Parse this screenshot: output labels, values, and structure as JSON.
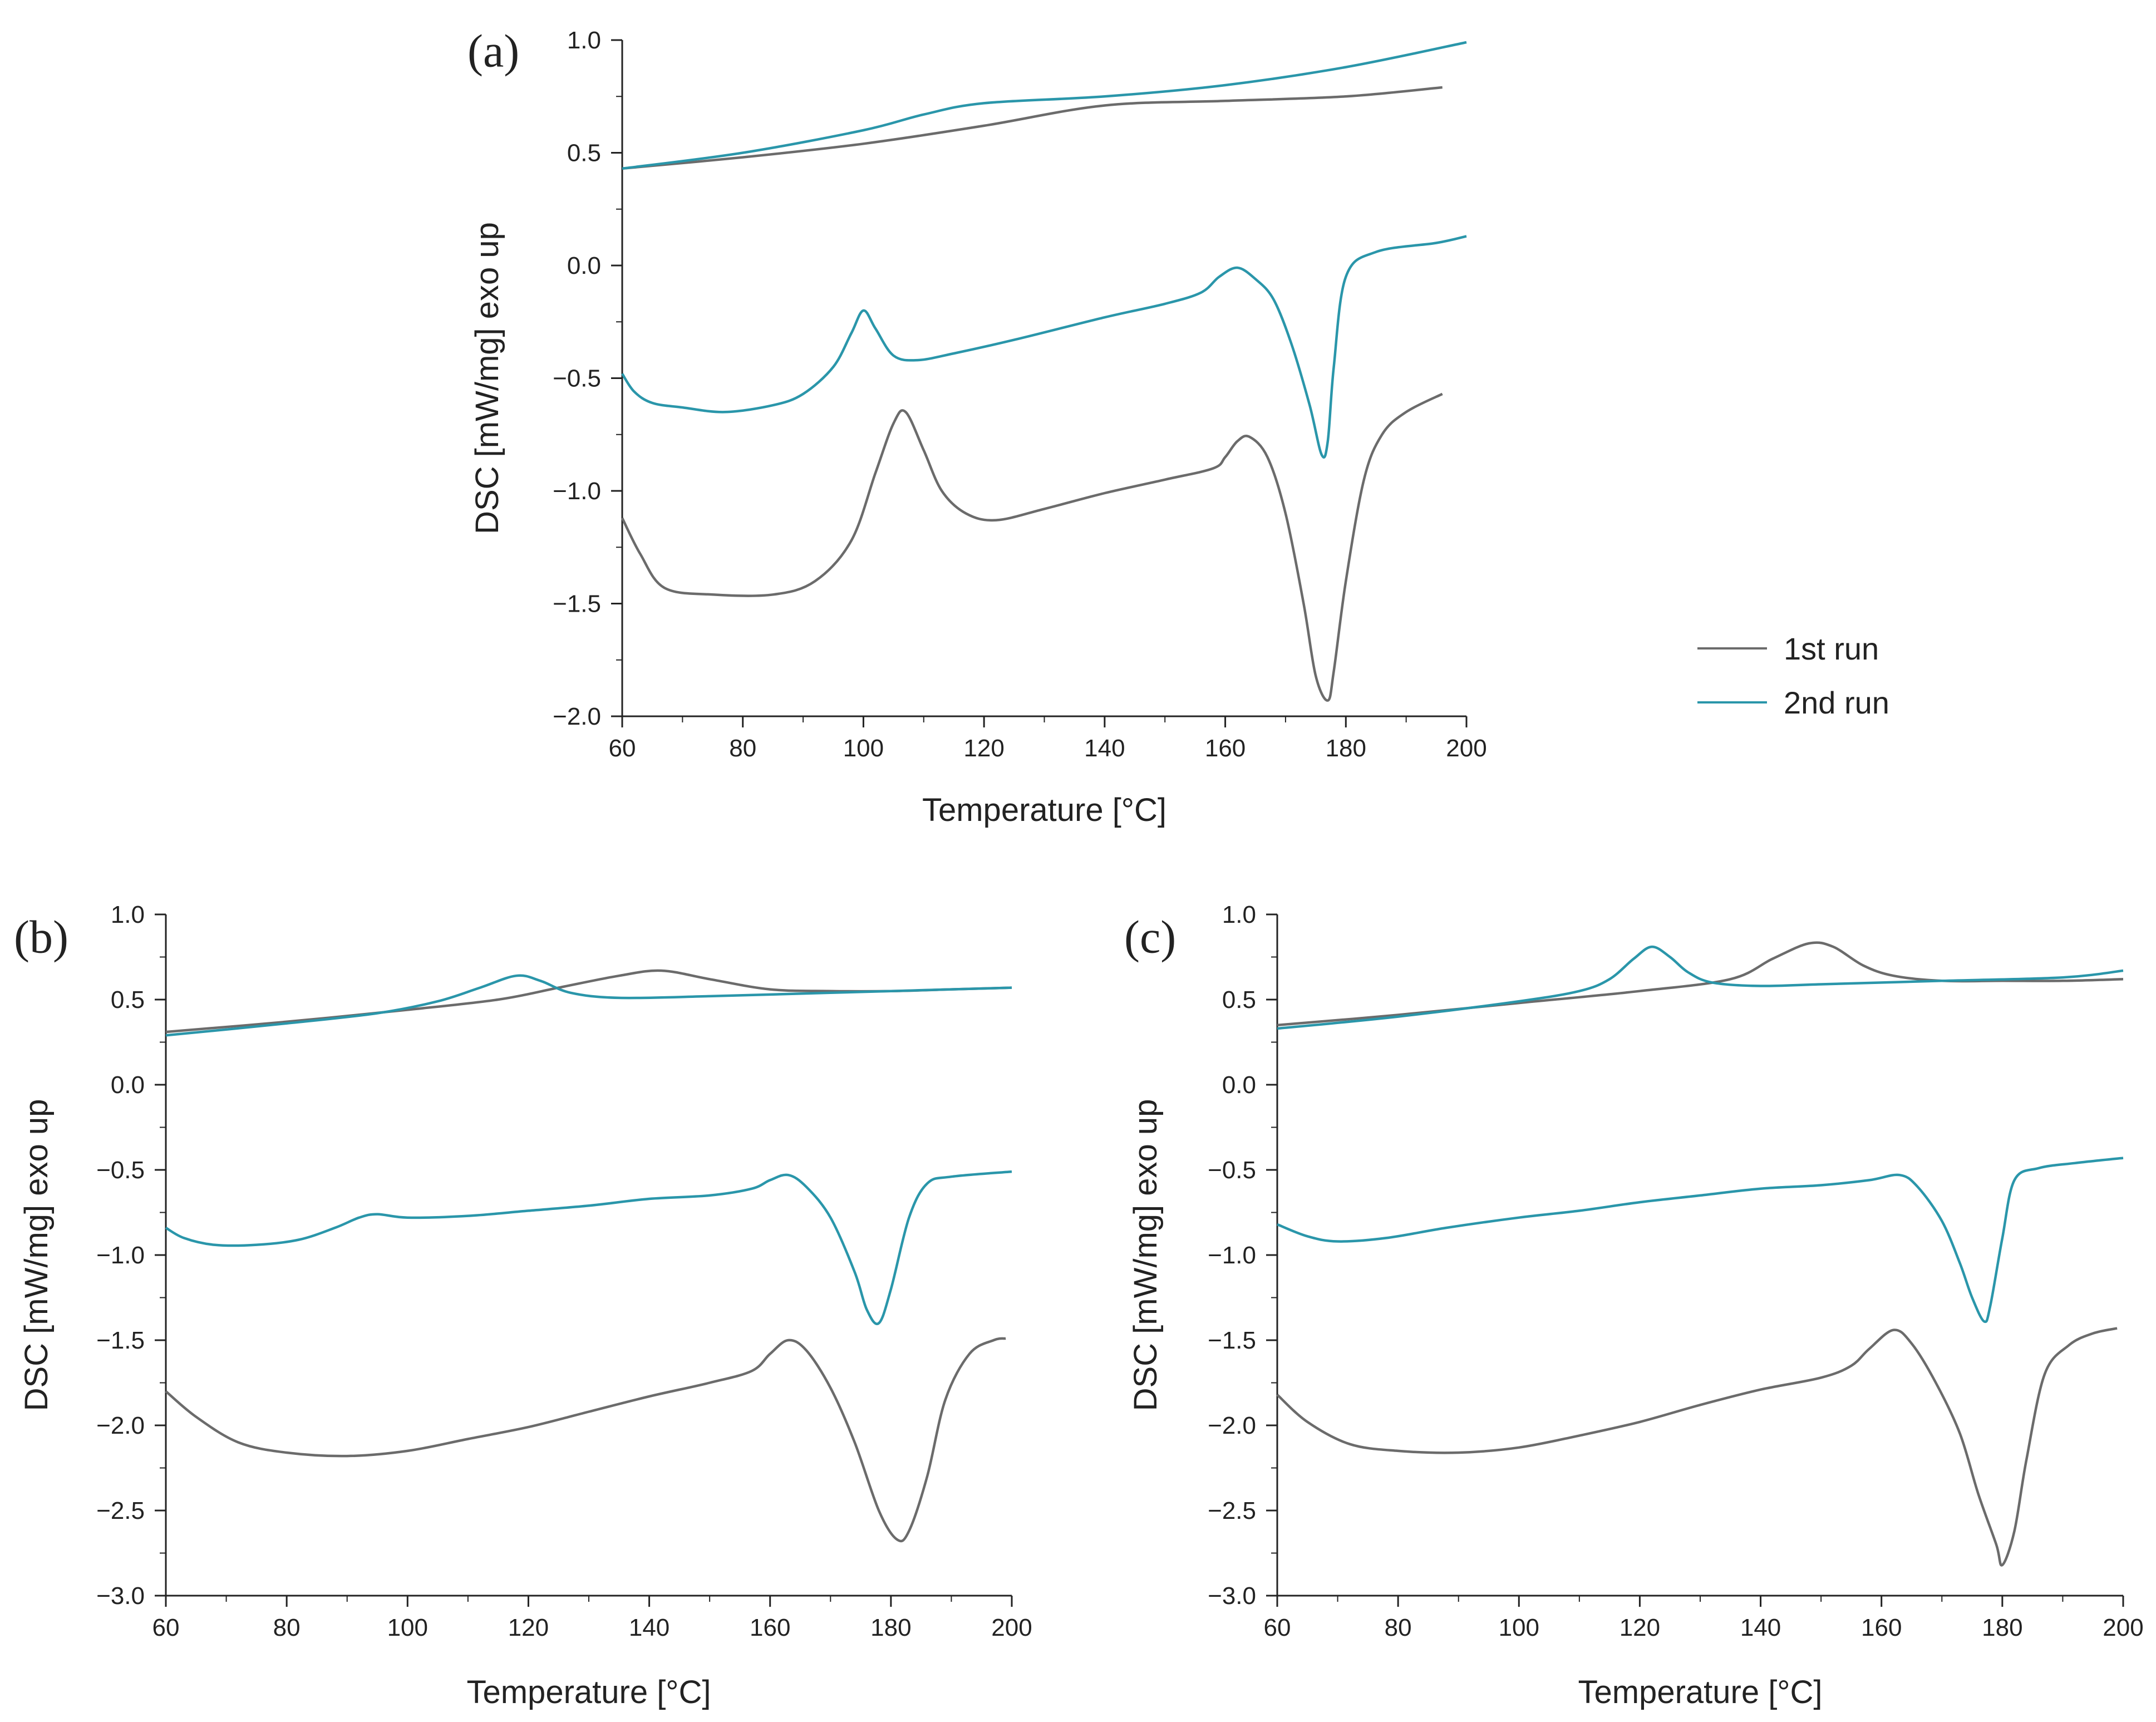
{
  "figure": {
    "x_label": "Temperature [°C]",
    "y_label": "DSC [mW/mg]   exo up"
  },
  "legend": {
    "items": [
      {
        "label": "1st run",
        "color": "#6b6b6b"
      },
      {
        "label": "2nd run",
        "color": "#2a96aa"
      }
    ]
  },
  "chart_data": [
    {
      "panel": "(a)",
      "type": "line",
      "xlabel": "Temperature [°C]",
      "ylabel": "DSC [mW/mg]   exo up",
      "xlim": [
        60,
        200
      ],
      "ylim": [
        -2.0,
        1.0
      ],
      "xticks": [
        60,
        80,
        100,
        120,
        140,
        160,
        180,
        200
      ],
      "yticks": [
        -2.0,
        -1.5,
        -1.0,
        -0.5,
        0.0,
        0.5,
        1.0
      ],
      "series": [
        {
          "name": "1st run",
          "color": "#6b6b6b",
          "points": [
            [
              60,
              0.43
            ],
            [
              80,
              0.48
            ],
            [
              100,
              0.54
            ],
            [
              120,
              0.62
            ],
            [
              140,
              0.71
            ],
            [
              160,
              0.73
            ],
            [
              180,
              0.75
            ],
            [
              196,
              0.79
            ]
          ]
        },
        {
          "name": "2nd run",
          "color": "#2a96aa",
          "points": [
            [
              60,
              0.43
            ],
            [
              80,
              0.5
            ],
            [
              100,
              0.6
            ],
            [
              110,
              0.67
            ],
            [
              120,
              0.72
            ],
            [
              140,
              0.75
            ],
            [
              160,
              0.8
            ],
            [
              180,
              0.88
            ],
            [
              200,
              0.99
            ]
          ]
        },
        {
          "name": "1st run",
          "color": "#6b6b6b",
          "points": [
            [
              60,
              -1.12
            ],
            [
              63,
              -1.28
            ],
            [
              67,
              -1.43
            ],
            [
              75,
              -1.46
            ],
            [
              85,
              -1.46
            ],
            [
              92,
              -1.4
            ],
            [
              98,
              -1.22
            ],
            [
              102,
              -0.92
            ],
            [
              105,
              -0.7
            ],
            [
              107,
              -0.65
            ],
            [
              110,
              -0.82
            ],
            [
              113,
              -1.0
            ],
            [
              117,
              -1.1
            ],
            [
              122,
              -1.13
            ],
            [
              130,
              -1.08
            ],
            [
              140,
              -1.01
            ],
            [
              150,
              -0.95
            ],
            [
              158,
              -0.9
            ],
            [
              160,
              -0.85
            ],
            [
              162,
              -0.78
            ],
            [
              164,
              -0.76
            ],
            [
              167,
              -0.85
            ],
            [
              170,
              -1.1
            ],
            [
              173,
              -1.5
            ],
            [
              175,
              -1.82
            ],
            [
              177,
              -1.93
            ],
            [
              178,
              -1.8
            ],
            [
              180,
              -1.4
            ],
            [
              183,
              -0.95
            ],
            [
              186,
              -0.75
            ],
            [
              190,
              -0.65
            ],
            [
              196,
              -0.57
            ]
          ]
        },
        {
          "name": "2nd run",
          "color": "#2a96aa",
          "points": [
            [
              60,
              -0.48
            ],
            [
              62,
              -0.56
            ],
            [
              65,
              -0.61
            ],
            [
              70,
              -0.63
            ],
            [
              77,
              -0.65
            ],
            [
              85,
              -0.62
            ],
            [
              90,
              -0.57
            ],
            [
              95,
              -0.45
            ],
            [
              98,
              -0.3
            ],
            [
              100,
              -0.2
            ],
            [
              102,
              -0.28
            ],
            [
              105,
              -0.4
            ],
            [
              109,
              -0.42
            ],
            [
              115,
              -0.39
            ],
            [
              125,
              -0.33
            ],
            [
              140,
              -0.23
            ],
            [
              150,
              -0.17
            ],
            [
              156,
              -0.12
            ],
            [
              159,
              -0.05
            ],
            [
              162,
              -0.01
            ],
            [
              165,
              -0.06
            ],
            [
              168,
              -0.15
            ],
            [
              171,
              -0.35
            ],
            [
              174,
              -0.62
            ],
            [
              176,
              -0.84
            ],
            [
              177,
              -0.78
            ],
            [
              178,
              -0.45
            ],
            [
              180,
              -0.05
            ],
            [
              185,
              0.06
            ],
            [
              195,
              0.1
            ],
            [
              200,
              0.13
            ]
          ]
        }
      ]
    },
    {
      "panel": "(b)",
      "type": "line",
      "xlabel": "Temperature [°C]",
      "ylabel": "DSC [mW/mg]   exo up",
      "xlim": [
        60,
        200
      ],
      "ylim": [
        -3.0,
        1.0
      ],
      "xticks": [
        60,
        80,
        100,
        120,
        140,
        160,
        180,
        200
      ],
      "yticks": [
        -3.0,
        -2.5,
        -2.0,
        -1.5,
        -1.0,
        -0.5,
        0.0,
        0.5,
        1.0
      ],
      "series": [
        {
          "name": "1st run",
          "color": "#6b6b6b",
          "points": [
            [
              60,
              0.31
            ],
            [
              80,
              0.37
            ],
            [
              100,
              0.44
            ],
            [
              115,
              0.5
            ],
            [
              125,
              0.57
            ],
            [
              135,
              0.64
            ],
            [
              142,
              0.67
            ],
            [
              150,
              0.62
            ],
            [
              160,
              0.56
            ],
            [
              170,
              0.55
            ],
            [
              180,
              0.55
            ],
            [
              190,
              0.56
            ],
            [
              200,
              0.57
            ]
          ]
        },
        {
          "name": "2nd run",
          "color": "#2a96aa",
          "points": [
            [
              60,
              0.29
            ],
            [
              80,
              0.36
            ],
            [
              95,
              0.42
            ],
            [
              105,
              0.49
            ],
            [
              112,
              0.57
            ],
            [
              118,
              0.64
            ],
            [
              122,
              0.61
            ],
            [
              127,
              0.54
            ],
            [
              135,
              0.51
            ],
            [
              150,
              0.52
            ],
            [
              170,
              0.54
            ],
            [
              200,
              0.57
            ]
          ]
        },
        {
          "name": "1st run",
          "color": "#6b6b6b",
          "points": [
            [
              60,
              -1.8
            ],
            [
              65,
              -1.95
            ],
            [
              72,
              -2.1
            ],
            [
              80,
              -2.16
            ],
            [
              90,
              -2.18
            ],
            [
              100,
              -2.15
            ],
            [
              110,
              -2.08
            ],
            [
              120,
              -2.01
            ],
            [
              130,
              -1.92
            ],
            [
              140,
              -1.83
            ],
            [
              150,
              -1.75
            ],
            [
              157,
              -1.68
            ],
            [
              160,
              -1.58
            ],
            [
              163,
              -1.5
            ],
            [
              166,
              -1.56
            ],
            [
              170,
              -1.78
            ],
            [
              174,
              -2.1
            ],
            [
              178,
              -2.5
            ],
            [
              181,
              -2.67
            ],
            [
              183,
              -2.62
            ],
            [
              186,
              -2.3
            ],
            [
              189,
              -1.85
            ],
            [
              193,
              -1.58
            ],
            [
              197,
              -1.5
            ],
            [
              199,
              -1.49
            ]
          ]
        },
        {
          "name": "2nd run",
          "color": "#2a96aa",
          "points": [
            [
              60,
              -0.84
            ],
            [
              63,
              -0.9
            ],
            [
              68,
              -0.94
            ],
            [
              75,
              -0.94
            ],
            [
              82,
              -0.91
            ],
            [
              88,
              -0.84
            ],
            [
              92,
              -0.78
            ],
            [
              95,
              -0.76
            ],
            [
              100,
              -0.78
            ],
            [
              110,
              -0.77
            ],
            [
              120,
              -0.74
            ],
            [
              130,
              -0.71
            ],
            [
              140,
              -0.67
            ],
            [
              150,
              -0.65
            ],
            [
              157,
              -0.61
            ],
            [
              160,
              -0.56
            ],
            [
              163,
              -0.53
            ],
            [
              166,
              -0.6
            ],
            [
              170,
              -0.78
            ],
            [
              174,
              -1.1
            ],
            [
              176,
              -1.32
            ],
            [
              178,
              -1.4
            ],
            [
              180,
              -1.2
            ],
            [
              183,
              -0.78
            ],
            [
              186,
              -0.58
            ],
            [
              190,
              -0.54
            ],
            [
              200,
              -0.51
            ]
          ]
        }
      ]
    },
    {
      "panel": "(c)",
      "type": "line",
      "xlabel": "Temperature [°C]",
      "ylabel": "DSC [mW/mg]   exo up",
      "xlim": [
        60,
        200
      ],
      "ylim": [
        -3.0,
        1.0
      ],
      "xticks": [
        60,
        80,
        100,
        120,
        140,
        160,
        180,
        200
      ],
      "yticks": [
        -3.0,
        -2.5,
        -2.0,
        -1.5,
        -1.0,
        -0.5,
        0.0,
        0.5,
        1.0
      ],
      "series": [
        {
          "name": "1st run",
          "color": "#6b6b6b",
          "points": [
            [
              60,
              0.35
            ],
            [
              80,
              0.41
            ],
            [
              100,
              0.48
            ],
            [
              120,
              0.55
            ],
            [
              135,
              0.62
            ],
            [
              142,
              0.74
            ],
            [
              148,
              0.83
            ],
            [
              152,
              0.81
            ],
            [
              157,
              0.7
            ],
            [
              162,
              0.64
            ],
            [
              170,
              0.61
            ],
            [
              180,
              0.61
            ],
            [
              190,
              0.61
            ],
            [
              200,
              0.62
            ]
          ]
        },
        {
          "name": "2nd run",
          "color": "#2a96aa",
          "points": [
            [
              60,
              0.33
            ],
            [
              80,
              0.4
            ],
            [
              100,
              0.49
            ],
            [
              110,
              0.55
            ],
            [
              115,
              0.62
            ],
            [
              119,
              0.74
            ],
            [
              122,
              0.81
            ],
            [
              125,
              0.75
            ],
            [
              128,
              0.66
            ],
            [
              132,
              0.6
            ],
            [
              140,
              0.58
            ],
            [
              150,
              0.59
            ],
            [
              170,
              0.61
            ],
            [
              190,
              0.63
            ],
            [
              200,
              0.67
            ]
          ]
        },
        {
          "name": "1st run",
          "color": "#6b6b6b",
          "points": [
            [
              60,
              -1.82
            ],
            [
              65,
              -1.98
            ],
            [
              72,
              -2.11
            ],
            [
              80,
              -2.15
            ],
            [
              90,
              -2.16
            ],
            [
              100,
              -2.13
            ],
            [
              110,
              -2.06
            ],
            [
              120,
              -1.98
            ],
            [
              130,
              -1.88
            ],
            [
              140,
              -1.79
            ],
            [
              150,
              -1.72
            ],
            [
              155,
              -1.65
            ],
            [
              158,
              -1.55
            ],
            [
              162,
              -1.44
            ],
            [
              165,
              -1.52
            ],
            [
              169,
              -1.75
            ],
            [
              173,
              -2.05
            ],
            [
              176,
              -2.4
            ],
            [
              179,
              -2.7
            ],
            [
              180,
              -2.82
            ],
            [
              182,
              -2.62
            ],
            [
              184,
              -2.2
            ],
            [
              187,
              -1.7
            ],
            [
              191,
              -1.53
            ],
            [
              195,
              -1.46
            ],
            [
              199,
              -1.43
            ]
          ]
        },
        {
          "name": "2nd run",
          "color": "#2a96aa",
          "points": [
            [
              60,
              -0.82
            ],
            [
              65,
              -0.89
            ],
            [
              70,
              -0.92
            ],
            [
              78,
              -0.9
            ],
            [
              88,
              -0.84
            ],
            [
              100,
              -0.78
            ],
            [
              110,
              -0.74
            ],
            [
              120,
              -0.69
            ],
            [
              130,
              -0.65
            ],
            [
              140,
              -0.61
            ],
            [
              150,
              -0.59
            ],
            [
              158,
              -0.56
            ],
            [
              163,
              -0.53
            ],
            [
              166,
              -0.6
            ],
            [
              170,
              -0.8
            ],
            [
              173,
              -1.05
            ],
            [
              175,
              -1.25
            ],
            [
              177,
              -1.39
            ],
            [
              178,
              -1.3
            ],
            [
              180,
              -0.9
            ],
            [
              182,
              -0.56
            ],
            [
              186,
              -0.49
            ],
            [
              192,
              -0.46
            ],
            [
              200,
              -0.43
            ]
          ]
        }
      ]
    }
  ]
}
